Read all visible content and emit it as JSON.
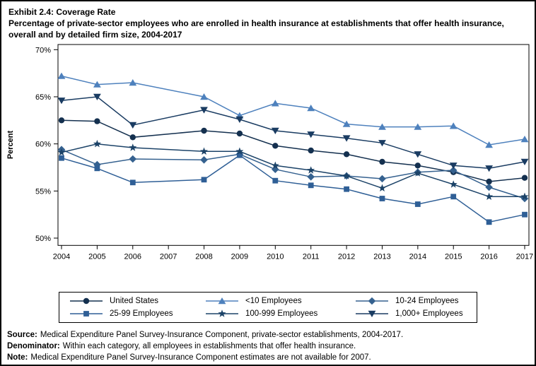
{
  "header": {
    "title": "Exhibit 2.4: Coverage Rate",
    "subtitle": "Percentage of private-sector employees who are enrolled in health insurance at establishments that offer health insurance, overall and by detailed firm size, 2004-2017"
  },
  "chart_data": {
    "type": "line",
    "title": "Exhibit 2.4: Coverage Rate",
    "subtitle": "Percentage of private-sector employees who are enrolled in health insurance at establishments that offer health insurance, overall and by detailed firm size, 2004-2017",
    "xlabel": "",
    "ylabel": "Percent",
    "ylim": [
      50,
      70
    ],
    "yticks": [
      70,
      65,
      60,
      55,
      50
    ],
    "ytick_suffix": "%",
    "grid": false,
    "gap_note": "2007 values not available",
    "categories": [
      "2004",
      "2005",
      "2006",
      "2007",
      "2008",
      "2009",
      "2010",
      "2011",
      "2012",
      "2013",
      "2014",
      "2015",
      "2016",
      "2017"
    ],
    "series": [
      {
        "name": "United States",
        "marker": "circle",
        "color": "#14304F",
        "values": [
          62.5,
          62.4,
          60.7,
          null,
          61.4,
          61.1,
          59.8,
          59.3,
          58.9,
          58.1,
          57.7,
          57.0,
          56.0,
          56.4
        ]
      },
      {
        "name": "<10 Employees",
        "marker": "triangle",
        "color": "#4E81BD",
        "values": [
          67.2,
          66.3,
          66.5,
          null,
          65.0,
          63.0,
          64.3,
          63.8,
          62.1,
          61.8,
          61.8,
          61.9,
          59.9,
          60.5
        ]
      },
      {
        "name": "10-24 Employees",
        "marker": "diamond",
        "color": "#35618F",
        "values": [
          59.4,
          57.8,
          58.4,
          null,
          58.3,
          58.9,
          57.3,
          56.5,
          56.6,
          56.3,
          57.0,
          57.2,
          55.4,
          54.2
        ]
      },
      {
        "name": "25-99 Employees",
        "marker": "square",
        "color": "#2F5F96",
        "values": [
          58.5,
          57.4,
          55.9,
          null,
          56.2,
          58.8,
          56.1,
          55.6,
          55.2,
          54.2,
          53.6,
          54.4,
          51.7,
          52.5
        ]
      },
      {
        "name": "100-999 Employees",
        "marker": "star",
        "color": "#1C4368",
        "values": [
          59.1,
          60.0,
          59.6,
          null,
          59.2,
          59.2,
          57.7,
          57.2,
          56.6,
          55.3,
          56.9,
          55.7,
          54.4,
          54.4
        ]
      },
      {
        "name": "1,000+ Employees",
        "marker": "triangle-down",
        "color": "#1A3C62",
        "values": [
          64.6,
          65.0,
          62.0,
          null,
          63.6,
          62.6,
          61.4,
          61.0,
          60.6,
          60.1,
          58.9,
          57.7,
          57.4,
          58.1
        ]
      }
    ],
    "legend": {
      "position": "bottom",
      "rows": [
        [
          0,
          1,
          2
        ],
        [
          3,
          4,
          5
        ]
      ]
    }
  },
  "footnotes": [
    {
      "label": "Source:",
      "text": "Medical Expenditure Panel Survey-Insurance Component, private-sector establishments, 2004-2017."
    },
    {
      "label": "Denominator:",
      "text": "Within each category, all employees in establishments that offer health insurance."
    },
    {
      "label": "Note:",
      "text": "Medical Expenditure Panel Survey-Insurance Component estimates are not available for 2007."
    }
  ]
}
